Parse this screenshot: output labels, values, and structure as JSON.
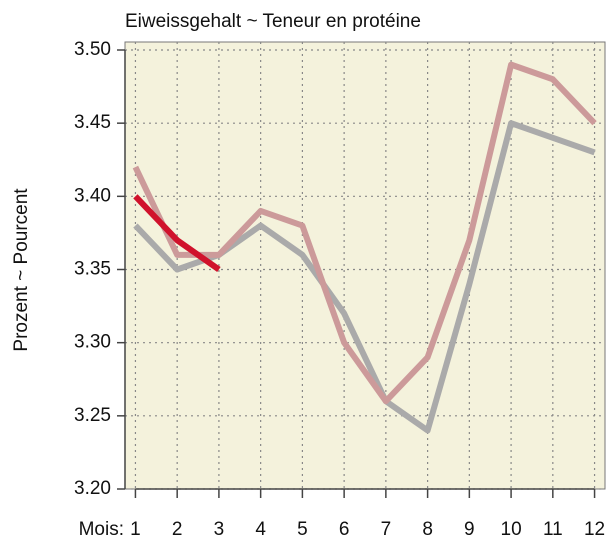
{
  "chart_data": {
    "type": "line",
    "title": "Eiweissgehalt   ~   Teneur en protéine",
    "y_label": "Prozent   ~   Pourcent",
    "x_label": "Mois:",
    "x": [
      1,
      2,
      3,
      4,
      5,
      6,
      7,
      8,
      9,
      10,
      11,
      12
    ],
    "series": [
      {
        "color": "#aaaaaa",
        "values": [
          3.38,
          3.35,
          3.36,
          3.38,
          3.36,
          3.32,
          3.26,
          3.24,
          3.34,
          3.45,
          3.44,
          3.43
        ]
      },
      {
        "color": "#cc9a9a",
        "values": [
          3.42,
          3.36,
          3.36,
          3.39,
          3.38,
          3.3,
          3.26,
          3.29,
          3.37,
          3.49,
          3.48,
          3.45
        ]
      },
      {
        "color": "#d0122c",
        "values": [
          3.4,
          3.37,
          3.35,
          null,
          null,
          null,
          null,
          null,
          null,
          null,
          null,
          null
        ]
      }
    ],
    "xlim": [
      0.75,
      12.25
    ],
    "xticks": [
      1,
      2,
      3,
      4,
      5,
      6,
      7,
      8,
      9,
      10,
      11,
      12
    ],
    "ylim": [
      3.2,
      3.5
    ],
    "yticks": [
      {
        "value": 3.2,
        "label": "3.20"
      },
      3.25,
      {
        "value": 3.3,
        "label": "3.30"
      },
      3.35,
      {
        "value": 3.4,
        "label": "3.40"
      },
      3.45,
      {
        "value": 3.5,
        "label": "3.50"
      }
    ],
    "grid": true,
    "background": "#f4f2dc"
  }
}
